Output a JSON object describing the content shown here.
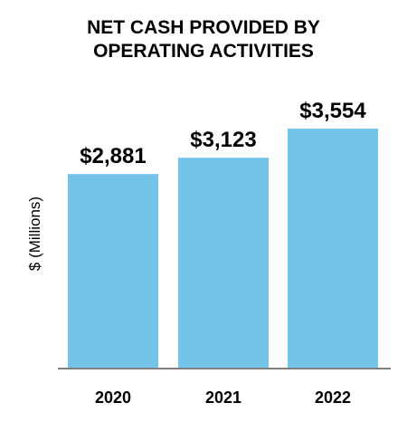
{
  "chart_data": {
    "type": "bar",
    "title_line_1": "NET CASH PROVIDED BY",
    "title_line_2": "OPERATING ACTIVITIES",
    "xlabel": "",
    "ylabel": "$ (Millions)",
    "categories": [
      "2020",
      "2021",
      "2022"
    ],
    "values": [
      2881,
      3123,
      3554
    ],
    "value_labels": [
      "$2,881",
      "$3,123",
      "$3,554"
    ],
    "ylim": [
      0,
      3554
    ],
    "grid": false,
    "legend": "none",
    "bar_color": "#73c4e8",
    "axis_color": "#7f7f7f"
  }
}
